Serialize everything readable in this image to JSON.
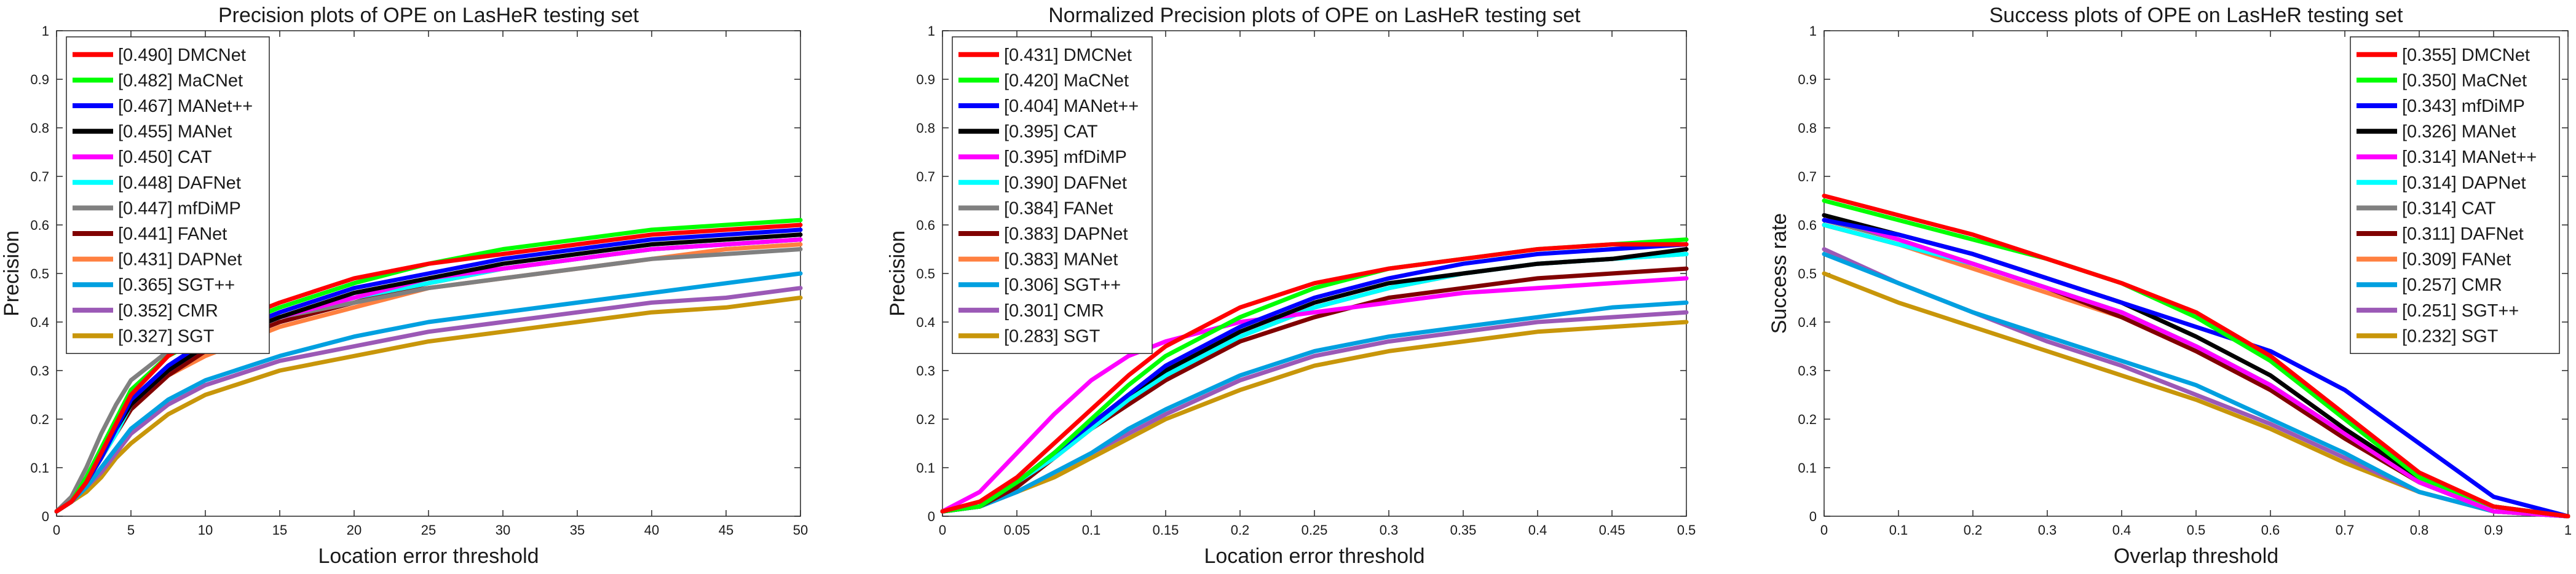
{
  "chart_data": [
    {
      "type": "line",
      "title": "Precision plots of OPE on LasHeR testing set",
      "xlabel": "Location error threshold",
      "ylabel": "Precision",
      "xlim": [
        0,
        50
      ],
      "ylim": [
        0,
        1
      ],
      "xticks": [
        0,
        5,
        10,
        15,
        20,
        25,
        30,
        35,
        40,
        45,
        50
      ],
      "xtick_labels": [
        "0",
        "5",
        "10",
        "15",
        "20",
        "25",
        "30",
        "35",
        "40",
        "45",
        "50"
      ],
      "yticks": [
        0,
        0.1,
        0.2,
        0.3,
        0.4,
        0.5,
        0.6,
        0.7,
        0.8,
        0.9,
        1
      ],
      "ytick_labels": [
        "0",
        "0.1",
        "0.2",
        "0.3",
        "0.4",
        "0.5",
        "0.6",
        "0.7",
        "0.8",
        "0.9",
        "1"
      ],
      "grid": false,
      "legend_position": "top-left",
      "x": [
        0,
        1,
        2,
        3,
        4,
        5,
        7.5,
        10,
        15,
        20,
        25,
        30,
        35,
        40,
        45,
        50
      ],
      "series": [
        {
          "name": "[0.490] DMCNet",
          "color": "#ff0000",
          "values": [
            0.01,
            0.03,
            0.07,
            0.13,
            0.19,
            0.25,
            0.33,
            0.38,
            0.44,
            0.49,
            0.52,
            0.54,
            0.56,
            0.58,
            0.59,
            0.6
          ]
        },
        {
          "name": "[0.482] MaCNet",
          "color": "#00ff00",
          "values": [
            0.01,
            0.03,
            0.08,
            0.14,
            0.2,
            0.26,
            0.33,
            0.37,
            0.43,
            0.48,
            0.52,
            0.55,
            0.57,
            0.59,
            0.6,
            0.61
          ]
        },
        {
          "name": "[0.467] MANet++",
          "color": "#0000ff",
          "values": [
            0.01,
            0.03,
            0.07,
            0.12,
            0.18,
            0.24,
            0.31,
            0.36,
            0.42,
            0.47,
            0.5,
            0.53,
            0.55,
            0.57,
            0.58,
            0.59
          ]
        },
        {
          "name": "[0.455] MANet",
          "color": "#000000",
          "values": [
            0.01,
            0.03,
            0.07,
            0.12,
            0.18,
            0.23,
            0.3,
            0.35,
            0.41,
            0.46,
            0.49,
            0.52,
            0.54,
            0.56,
            0.57,
            0.58
          ]
        },
        {
          "name": "[0.450] CAT",
          "color": "#ff00ff",
          "values": [
            0.01,
            0.03,
            0.07,
            0.12,
            0.18,
            0.23,
            0.3,
            0.35,
            0.41,
            0.45,
            0.49,
            0.51,
            0.53,
            0.55,
            0.56,
            0.57
          ]
        },
        {
          "name": "[0.448] DAFNet",
          "color": "#00ffff",
          "values": [
            0.01,
            0.03,
            0.07,
            0.12,
            0.17,
            0.23,
            0.3,
            0.35,
            0.41,
            0.45,
            0.48,
            0.51,
            0.53,
            0.55,
            0.56,
            0.57
          ]
        },
        {
          "name": "[0.447] mfDiMP",
          "color": "#808080",
          "values": [
            0.01,
            0.04,
            0.1,
            0.17,
            0.23,
            0.28,
            0.34,
            0.37,
            0.41,
            0.44,
            0.47,
            0.49,
            0.51,
            0.53,
            0.54,
            0.55
          ]
        },
        {
          "name": "[0.441] FANet",
          "color": "#800000",
          "values": [
            0.01,
            0.03,
            0.07,
            0.12,
            0.17,
            0.22,
            0.29,
            0.34,
            0.4,
            0.44,
            0.48,
            0.51,
            0.53,
            0.55,
            0.56,
            0.57
          ]
        },
        {
          "name": "[0.431] DAPNet",
          "color": "#ff8040",
          "values": [
            0.01,
            0.03,
            0.07,
            0.12,
            0.17,
            0.22,
            0.29,
            0.33,
            0.39,
            0.43,
            0.47,
            0.49,
            0.51,
            0.53,
            0.55,
            0.56
          ]
        },
        {
          "name": "[0.365] SGT++",
          "color": "#00a0e0",
          "values": [
            0.01,
            0.03,
            0.06,
            0.1,
            0.14,
            0.18,
            0.24,
            0.28,
            0.33,
            0.37,
            0.4,
            0.42,
            0.44,
            0.46,
            0.48,
            0.5
          ]
        },
        {
          "name": "[0.352] CMR",
          "color": "#9b59b6",
          "values": [
            0.01,
            0.03,
            0.06,
            0.09,
            0.13,
            0.17,
            0.23,
            0.27,
            0.32,
            0.35,
            0.38,
            0.4,
            0.42,
            0.44,
            0.45,
            0.47
          ]
        },
        {
          "name": "[0.327] SGT",
          "color": "#c8960a",
          "values": [
            0.01,
            0.03,
            0.05,
            0.08,
            0.12,
            0.15,
            0.21,
            0.25,
            0.3,
            0.33,
            0.36,
            0.38,
            0.4,
            0.42,
            0.43,
            0.45
          ]
        }
      ]
    },
    {
      "type": "line",
      "title": "Normalized Precision plots of OPE on LasHeR testing set",
      "xlabel": "Location error threshold",
      "ylabel": "Precision",
      "xlim": [
        0,
        0.5
      ],
      "ylim": [
        0,
        1
      ],
      "xticks": [
        0,
        0.05,
        0.1,
        0.15,
        0.2,
        0.25,
        0.3,
        0.35,
        0.4,
        0.45,
        0.5
      ],
      "xtick_labels": [
        "0",
        "0.05",
        "0.1",
        "0.15",
        "0.2",
        "0.25",
        "0.3",
        "0.35",
        "0.4",
        "0.45",
        "0.5"
      ],
      "yticks": [
        0,
        0.1,
        0.2,
        0.3,
        0.4,
        0.5,
        0.6,
        0.7,
        0.8,
        0.9,
        1
      ],
      "ytick_labels": [
        "0",
        "0.1",
        "0.2",
        "0.3",
        "0.4",
        "0.5",
        "0.6",
        "0.7",
        "0.8",
        "0.9",
        "1"
      ],
      "grid": false,
      "legend_position": "top-left",
      "x": [
        0,
        0.025,
        0.05,
        0.075,
        0.1,
        0.125,
        0.15,
        0.2,
        0.25,
        0.3,
        0.35,
        0.4,
        0.45,
        0.5
      ],
      "series": [
        {
          "name": "[0.431] DMCNet",
          "color": "#ff0000",
          "values": [
            0.01,
            0.03,
            0.08,
            0.15,
            0.22,
            0.29,
            0.35,
            0.43,
            0.48,
            0.51,
            0.53,
            0.55,
            0.56,
            0.56
          ]
        },
        {
          "name": "[0.420] MaCNet",
          "color": "#00ff00",
          "values": [
            0.01,
            0.02,
            0.07,
            0.13,
            0.2,
            0.27,
            0.33,
            0.41,
            0.47,
            0.51,
            0.53,
            0.55,
            0.56,
            0.57
          ]
        },
        {
          "name": "[0.404] MANet++",
          "color": "#0000ff",
          "values": [
            0.01,
            0.02,
            0.07,
            0.13,
            0.19,
            0.25,
            0.31,
            0.39,
            0.45,
            0.49,
            0.52,
            0.54,
            0.55,
            0.56
          ]
        },
        {
          "name": "[0.395] CAT",
          "color": "#000000",
          "values": [
            0.01,
            0.02,
            0.07,
            0.13,
            0.19,
            0.25,
            0.3,
            0.38,
            0.44,
            0.48,
            0.5,
            0.52,
            0.53,
            0.55
          ]
        },
        {
          "name": "[0.395] mfDiMP",
          "color": "#ff00ff",
          "values": [
            0.01,
            0.05,
            0.13,
            0.21,
            0.28,
            0.33,
            0.36,
            0.4,
            0.42,
            0.44,
            0.46,
            0.47,
            0.48,
            0.49
          ]
        },
        {
          "name": "[0.390] DAFNet",
          "color": "#00ffff",
          "values": [
            0.01,
            0.02,
            0.07,
            0.12,
            0.18,
            0.24,
            0.29,
            0.37,
            0.43,
            0.47,
            0.5,
            0.52,
            0.53,
            0.54
          ]
        },
        {
          "name": "[0.384] FANet",
          "color": "#808080",
          "values": [
            0.01,
            0.02,
            0.07,
            0.12,
            0.18,
            0.24,
            0.29,
            0.37,
            0.43,
            0.47,
            0.5,
            0.52,
            0.53,
            0.54
          ]
        },
        {
          "name": "[0.383] DAPNet",
          "color": "#800000",
          "values": [
            0.01,
            0.02,
            0.06,
            0.12,
            0.18,
            0.23,
            0.28,
            0.36,
            0.41,
            0.45,
            0.47,
            0.49,
            0.5,
            0.51
          ]
        },
        {
          "name": "[0.383] MANet",
          "color": "#ff8040",
          "values": [
            0.01,
            0.02,
            0.07,
            0.12,
            0.18,
            0.24,
            0.29,
            0.37,
            0.43,
            0.47,
            0.5,
            0.52,
            0.53,
            0.55
          ]
        },
        {
          "name": "[0.306] SGT++",
          "color": "#00a0e0",
          "values": [
            0.01,
            0.02,
            0.05,
            0.09,
            0.13,
            0.18,
            0.22,
            0.29,
            0.34,
            0.37,
            0.39,
            0.41,
            0.43,
            0.44
          ]
        },
        {
          "name": "[0.301] CMR",
          "color": "#9b59b6",
          "values": [
            0.01,
            0.02,
            0.05,
            0.09,
            0.13,
            0.17,
            0.21,
            0.28,
            0.33,
            0.36,
            0.38,
            0.4,
            0.41,
            0.42
          ]
        },
        {
          "name": "[0.283] SGT",
          "color": "#c8960a",
          "values": [
            0.01,
            0.02,
            0.05,
            0.08,
            0.12,
            0.16,
            0.2,
            0.26,
            0.31,
            0.34,
            0.36,
            0.38,
            0.39,
            0.4
          ]
        }
      ]
    },
    {
      "type": "line",
      "title": "Success plots of OPE on LasHeR testing set",
      "xlabel": "Overlap threshold",
      "ylabel": "Success rate",
      "xlim": [
        0,
        1
      ],
      "ylim": [
        0,
        1
      ],
      "xticks": [
        0,
        0.1,
        0.2,
        0.3,
        0.4,
        0.5,
        0.6,
        0.7,
        0.8,
        0.9,
        1
      ],
      "xtick_labels": [
        "0",
        "0.1",
        "0.2",
        "0.3",
        "0.4",
        "0.5",
        "0.6",
        "0.7",
        "0.8",
        "0.9",
        "1"
      ],
      "yticks": [
        0,
        0.1,
        0.2,
        0.3,
        0.4,
        0.5,
        0.6,
        0.7,
        0.8,
        0.9,
        1
      ],
      "ytick_labels": [
        "0",
        "0.1",
        "0.2",
        "0.3",
        "0.4",
        "0.5",
        "0.6",
        "0.7",
        "0.8",
        "0.9",
        "1"
      ],
      "grid": false,
      "legend_position": "top-right",
      "x": [
        0,
        0.1,
        0.2,
        0.3,
        0.4,
        0.5,
        0.6,
        0.7,
        0.8,
        0.9,
        1
      ],
      "series": [
        {
          "name": "[0.355] DMCNet",
          "color": "#ff0000",
          "values": [
            0.66,
            0.62,
            0.58,
            0.53,
            0.48,
            0.42,
            0.33,
            0.21,
            0.09,
            0.02,
            0.0
          ]
        },
        {
          "name": "[0.350] MaCNet",
          "color": "#00ff00",
          "values": [
            0.65,
            0.61,
            0.57,
            0.53,
            0.48,
            0.41,
            0.32,
            0.2,
            0.08,
            0.02,
            0.0
          ]
        },
        {
          "name": "[0.343] mfDiMP",
          "color": "#0000ff",
          "values": [
            0.61,
            0.58,
            0.54,
            0.49,
            0.44,
            0.39,
            0.34,
            0.26,
            0.15,
            0.04,
            0.0
          ]
        },
        {
          "name": "[0.326] MANet",
          "color": "#000000",
          "values": [
            0.62,
            0.58,
            0.54,
            0.49,
            0.44,
            0.37,
            0.29,
            0.18,
            0.08,
            0.02,
            0.0
          ]
        },
        {
          "name": "[0.314] MANet++",
          "color": "#ff00ff",
          "values": [
            0.62,
            0.57,
            0.52,
            0.47,
            0.42,
            0.35,
            0.27,
            0.17,
            0.07,
            0.01,
            0.0
          ]
        },
        {
          "name": "[0.314] DAPNet",
          "color": "#00ffff",
          "values": [
            0.6,
            0.56,
            0.52,
            0.47,
            0.42,
            0.35,
            0.27,
            0.17,
            0.07,
            0.01,
            0.0
          ]
        },
        {
          "name": "[0.314] CAT",
          "color": "#808080",
          "values": [
            0.61,
            0.57,
            0.52,
            0.47,
            0.42,
            0.35,
            0.27,
            0.17,
            0.07,
            0.01,
            0.0
          ]
        },
        {
          "name": "[0.311] DAFNet",
          "color": "#800000",
          "values": [
            0.6,
            0.56,
            0.52,
            0.47,
            0.41,
            0.34,
            0.26,
            0.16,
            0.07,
            0.01,
            0.0
          ]
        },
        {
          "name": "[0.309] FANet",
          "color": "#ff8040",
          "values": [
            0.6,
            0.56,
            0.51,
            0.46,
            0.41,
            0.34,
            0.26,
            0.16,
            0.07,
            0.01,
            0.0
          ]
        },
        {
          "name": "[0.257] CMR",
          "color": "#00a0e0",
          "values": [
            0.54,
            0.48,
            0.42,
            0.37,
            0.32,
            0.27,
            0.2,
            0.13,
            0.05,
            0.01,
            0.0
          ]
        },
        {
          "name": "[0.251] SGT++",
          "color": "#9b59b6",
          "values": [
            0.55,
            0.48,
            0.42,
            0.36,
            0.31,
            0.25,
            0.19,
            0.12,
            0.05,
            0.01,
            0.0
          ]
        },
        {
          "name": "[0.232] SGT",
          "color": "#c8960a",
          "values": [
            0.5,
            0.44,
            0.39,
            0.34,
            0.29,
            0.24,
            0.18,
            0.11,
            0.05,
            0.01,
            0.0
          ]
        }
      ]
    }
  ]
}
